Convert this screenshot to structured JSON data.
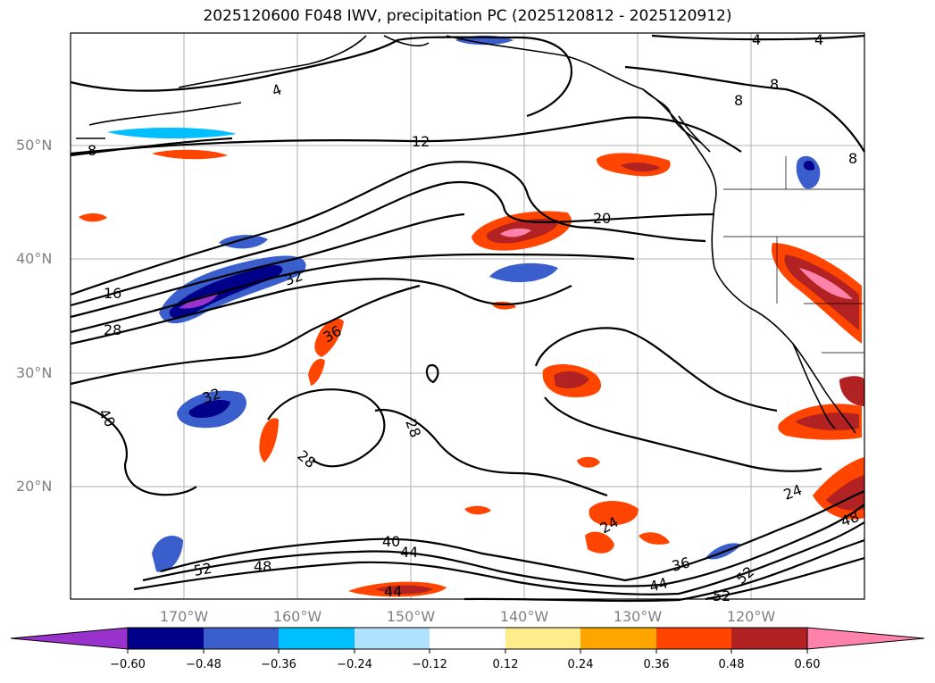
{
  "title": "2025120600 F048 IWV, precipitation PC (2025120812 - 2025120912)",
  "map": {
    "latitude_labels": [
      "50°N",
      "40°N",
      "30°N",
      "20°N"
    ],
    "longitude_labels": [
      "170°W",
      "160°W",
      "150°W",
      "140°W",
      "130°W",
      "120°W"
    ],
    "iwv_contour_labels": [
      "4",
      "4",
      "4",
      "8",
      "8",
      "8",
      "8",
      "12",
      "16",
      "20",
      "24",
      "24",
      "28",
      "28",
      "28",
      "32",
      "32",
      "36",
      "36",
      "40",
      "40",
      "44",
      "44",
      "44",
      "48",
      "48",
      "52",
      "52",
      "52"
    ]
  },
  "colorbar": {
    "tick_labels": [
      "−0.60",
      "−0.48",
      "−0.36",
      "−0.24",
      "−0.12",
      "0.12",
      "0.24",
      "0.36",
      "0.48",
      "0.60"
    ],
    "colors": [
      "#9932cc",
      "#00008b",
      "#3a5fcd",
      "#00bfff",
      "#b0e2ff",
      "#ffffff",
      "#ffec8b",
      "#ffa500",
      "#ff4500",
      "#b22222",
      "#ff82ab"
    ]
  }
}
